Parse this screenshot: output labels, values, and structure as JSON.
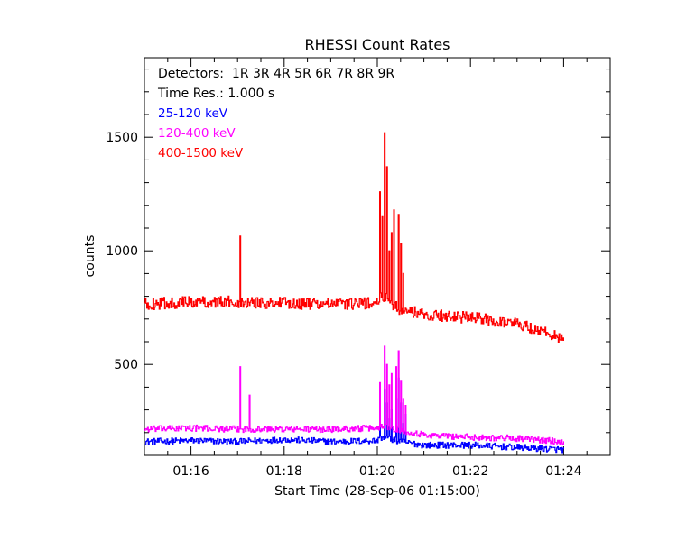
{
  "chart_data": {
    "type": "line",
    "title": "RHESSI Count Rates",
    "xlabel": "Start Time (28-Sep-06 01:15:00)",
    "ylabel": "counts",
    "x_unit": "minutes after 01:15:00",
    "xlim": [
      0,
      10
    ],
    "ylim": [
      100,
      1850
    ],
    "x_ticks": [
      {
        "value": 1,
        "label": "01:16"
      },
      {
        "value": 3,
        "label": "01:18"
      },
      {
        "value": 5,
        "label": "01:20"
      },
      {
        "value": 7,
        "label": "01:22"
      },
      {
        "value": 9,
        "label": "01:24"
      }
    ],
    "y_ticks": [
      {
        "value": 500,
        "label": "500"
      },
      {
        "value": 1000,
        "label": "1000"
      },
      {
        "value": 1500,
        "label": "1500"
      }
    ],
    "annotations": [
      "Detectors:  1R 3R 4R 5R 6R 7R 8R 9R",
      "Time Res.: 1.000 s"
    ],
    "grid": false,
    "x_end": 9,
    "series": [
      {
        "name": "25-120 keV",
        "color": "#0000ff",
        "base_points": [
          [
            0,
            160
          ],
          [
            1,
            165
          ],
          [
            2,
            160
          ],
          [
            3,
            170
          ],
          [
            4,
            160
          ],
          [
            5,
            165
          ],
          [
            5.1,
            180
          ],
          [
            5.5,
            160
          ],
          [
            6,
            145
          ],
          [
            7,
            145
          ],
          [
            8,
            135
          ],
          [
            9,
            125
          ]
        ],
        "noise": 14,
        "spikes": [
          [
            1.05,
            5
          ],
          [
            5.05,
            290
          ],
          [
            5.15,
            390
          ],
          [
            5.2,
            330
          ],
          [
            5.25,
            260
          ],
          [
            5.3,
            300
          ],
          [
            5.4,
            350
          ],
          [
            5.45,
            440
          ],
          [
            5.5,
            330
          ],
          [
            5.55,
            240
          ],
          [
            5.6,
            280
          ]
        ]
      },
      {
        "name": "120-400 keV",
        "color": "#ff00ff",
        "base_points": [
          [
            0,
            215
          ],
          [
            1,
            220
          ],
          [
            2,
            215
          ],
          [
            3,
            215
          ],
          [
            4,
            215
          ],
          [
            5,
            220
          ],
          [
            5.1,
            230
          ],
          [
            5.5,
            210
          ],
          [
            6,
            190
          ],
          [
            7,
            180
          ],
          [
            8,
            175
          ],
          [
            9,
            160
          ]
        ],
        "noise": 14,
        "spikes": [
          [
            2.05,
            490
          ],
          [
            2.25,
            365
          ],
          [
            5.05,
            420
          ],
          [
            5.15,
            580
          ],
          [
            5.2,
            500
          ],
          [
            5.25,
            410
          ],
          [
            5.3,
            460
          ],
          [
            5.4,
            490
          ],
          [
            5.45,
            560
          ],
          [
            5.5,
            430
          ],
          [
            5.55,
            350
          ],
          [
            5.6,
            320
          ]
        ]
      },
      {
        "name": "400-1500 keV",
        "color": "#ff0000",
        "base_points": [
          [
            0,
            765
          ],
          [
            1,
            775
          ],
          [
            2,
            775
          ],
          [
            3,
            770
          ],
          [
            4,
            765
          ],
          [
            5,
            770
          ],
          [
            5.1,
            800
          ],
          [
            5.5,
            740
          ],
          [
            6,
            720
          ],
          [
            7,
            705
          ],
          [
            8,
            680
          ],
          [
            9,
            615
          ]
        ],
        "noise": 26,
        "spikes": [
          [
            2.05,
            1065
          ],
          [
            5.05,
            1260
          ],
          [
            5.1,
            1150
          ],
          [
            5.15,
            1520
          ],
          [
            5.2,
            1370
          ],
          [
            5.25,
            1000
          ],
          [
            5.3,
            1080
          ],
          [
            5.35,
            1180
          ],
          [
            5.45,
            1160
          ],
          [
            5.5,
            1030
          ],
          [
            5.55,
            900
          ]
        ]
      }
    ]
  }
}
